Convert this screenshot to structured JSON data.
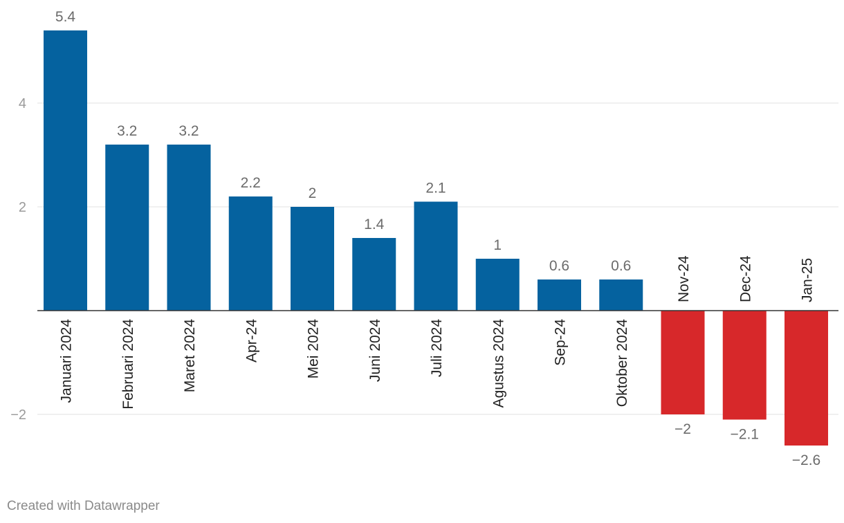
{
  "chart_data": {
    "type": "bar",
    "categories": [
      "Januari 2024",
      "Februari 2024",
      "Maret 2024",
      "Apr-24",
      "Mei 2024",
      "Juni 2024",
      "Juli 2024",
      "Agustus 2024",
      "Sep-24",
      "Oktober 2024",
      "Nov-24",
      "Dec-24",
      "Jan-25"
    ],
    "values": [
      5.4,
      3.2,
      3.2,
      2.2,
      2,
      1.4,
      2.1,
      1,
      0.6,
      0.6,
      -2,
      -2.1,
      -2.6
    ],
    "value_labels": [
      "5.4",
      "3.2",
      "3.2",
      "2.2",
      "2",
      "1.4",
      "2.1",
      "1",
      "0.6",
      "0.6",
      "−2",
      "−2.1",
      "−2.6"
    ],
    "y_ticks": [
      4,
      2,
      -2
    ],
    "y_tick_labels": [
      "4",
      "2",
      "−2"
    ],
    "ylim": [
      -2.6,
      5.4
    ],
    "title": "",
    "xlabel": "",
    "ylabel": "",
    "colors": {
      "positive": "#05629f",
      "negative": "#d7282a",
      "grid": "#e2e2e2",
      "axis": "#333333",
      "label": "#6b6b6b",
      "tick": "#9a9a9a",
      "category": "#222222"
    }
  },
  "footer": {
    "credit": "Created with Datawrapper"
  }
}
